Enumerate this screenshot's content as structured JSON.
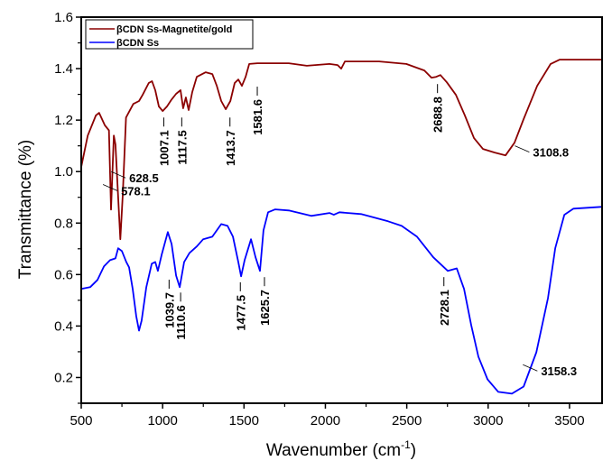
{
  "chart_data": {
    "type": "line",
    "title": "",
    "xlabel": "Wavenumber (cm",
    "xlabel_sup": "-1",
    "xlabel_end": ")",
    "ylabel": "Transmittance (%)",
    "xlim": [
      500,
      3700
    ],
    "ylim": [
      0.1,
      1.6
    ],
    "x_ticks": [
      500,
      1000,
      1500,
      2000,
      2500,
      3000,
      3500
    ],
    "x_tick_labels": [
      "500",
      "1000",
      "1500",
      "2000",
      "2500",
      "3000",
      "3500"
    ],
    "y_ticks": [
      0.2,
      0.4,
      0.6,
      0.8,
      1.0,
      1.2,
      1.4,
      1.6
    ],
    "y_tick_labels": [
      "0.2",
      "0.4",
      "0.6",
      "0.8",
      "1.0",
      "1.2",
      "1.4",
      "1.6"
    ],
    "grid": false,
    "legend_position": "top-left",
    "series": [
      {
        "name": "βCDN Ss-Magnetite/gold",
        "color": "#8b0000",
        "x": [
          500,
          540,
          590,
          610,
          645,
          670,
          683,
          700,
          710,
          740,
          755,
          775,
          820,
          855,
          877,
          915,
          935,
          955,
          977,
          1000,
          1027,
          1055,
          1083,
          1110,
          1126,
          1143,
          1160,
          1182,
          1210,
          1265,
          1305,
          1333,
          1360,
          1388,
          1416,
          1443,
          1465,
          1487,
          1510,
          1532,
          1582,
          1775,
          1886,
          2025,
          2075,
          2097,
          2120,
          2330,
          2497,
          2608,
          2652,
          2680,
          2707,
          2746,
          2802,
          2857,
          2913,
          2968,
          3040,
          3107,
          3162,
          3218,
          3301,
          3384,
          3440,
          3695
        ],
        "y": [
          1.018,
          1.14,
          1.218,
          1.228,
          1.18,
          1.16,
          0.852,
          1.14,
          1.105,
          0.737,
          0.91,
          1.21,
          1.263,
          1.274,
          1.298,
          1.344,
          1.351,
          1.316,
          1.253,
          1.235,
          1.253,
          1.28,
          1.302,
          1.316,
          1.246,
          1.288,
          1.239,
          1.309,
          1.368,
          1.386,
          1.379,
          1.333,
          1.274,
          1.242,
          1.274,
          1.344,
          1.358,
          1.333,
          1.368,
          1.418,
          1.421,
          1.421,
          1.411,
          1.418,
          1.414,
          1.4,
          1.428,
          1.428,
          1.418,
          1.393,
          1.365,
          1.368,
          1.375,
          1.347,
          1.298,
          1.218,
          1.13,
          1.088,
          1.074,
          1.063,
          1.112,
          1.204,
          1.333,
          1.418,
          1.435,
          1.435
        ]
      },
      {
        "name": "βCDN Ss",
        "color": "#0000ff",
        "x": [
          500,
          555,
          600,
          640,
          677,
          710,
          727,
          750,
          777,
          794,
          816,
          838,
          855,
          871,
          900,
          933,
          955,
          971,
          994,
          1032,
          1055,
          1083,
          1105,
          1132,
          1165,
          1210,
          1249,
          1305,
          1360,
          1399,
          1432,
          1465,
          1482,
          1504,
          1543,
          1571,
          1598,
          1620,
          1648,
          1692,
          1775,
          1913,
          2025,
          2052,
          2086,
          2219,
          2385,
          2469,
          2563,
          2663,
          2752,
          2768,
          2807,
          2852,
          2896,
          2940,
          2996,
          3062,
          3146,
          3218,
          3296,
          3368,
          3412,
          3468,
          3524,
          3695
        ],
        "y": [
          0.544,
          0.551,
          0.579,
          0.632,
          0.656,
          0.663,
          0.702,
          0.691,
          0.649,
          0.628,
          0.544,
          0.439,
          0.382,
          0.421,
          0.551,
          0.642,
          0.649,
          0.614,
          0.677,
          0.765,
          0.719,
          0.596,
          0.551,
          0.649,
          0.684,
          0.709,
          0.737,
          0.747,
          0.796,
          0.789,
          0.747,
          0.649,
          0.593,
          0.656,
          0.737,
          0.667,
          0.614,
          0.772,
          0.842,
          0.853,
          0.849,
          0.828,
          0.839,
          0.832,
          0.842,
          0.835,
          0.807,
          0.789,
          0.747,
          0.667,
          0.614,
          0.617,
          0.624,
          0.544,
          0.404,
          0.281,
          0.193,
          0.144,
          0.137,
          0.165,
          0.298,
          0.509,
          0.702,
          0.832,
          0.856,
          0.863
        ]
      }
    ],
    "annotations": [
      {
        "text": "628.5",
        "series": 0,
        "x": 628.5,
        "y": 1.0,
        "orientation": "horizontal"
      },
      {
        "text": "578.1",
        "series": 0,
        "x": 578.1,
        "y": 0.95,
        "orientation": "horizontal"
      },
      {
        "text": "1007.1",
        "series": 0,
        "x": 1007.1,
        "y": 1.21,
        "orientation": "vertical"
      },
      {
        "text": "1117.5",
        "series": 0,
        "x": 1117.5,
        "y": 1.21,
        "orientation": "vertical"
      },
      {
        "text": "1413.7",
        "series": 0,
        "x": 1413.7,
        "y": 1.21,
        "orientation": "vertical"
      },
      {
        "text": "1581.6",
        "series": 0,
        "x": 1581.6,
        "y": 1.33,
        "orientation": "vertical"
      },
      {
        "text": "2688.8",
        "series": 0,
        "x": 2688.8,
        "y": 1.34,
        "orientation": "vertical"
      },
      {
        "text": "3108.8",
        "series": 0,
        "x": 3108.8,
        "y": 1.1,
        "orientation": "horizontal"
      },
      {
        "text": "1039.7",
        "series": 1,
        "x": 1039.7,
        "y": 0.58,
        "orientation": "vertical"
      },
      {
        "text": "1110.6",
        "series": 1,
        "x": 1110.6,
        "y": 0.53,
        "orientation": "vertical"
      },
      {
        "text": "1477.5",
        "series": 1,
        "x": 1477.5,
        "y": 0.57,
        "orientation": "vertical"
      },
      {
        "text": "1625.7",
        "series": 1,
        "x": 1625.7,
        "y": 0.59,
        "orientation": "vertical"
      },
      {
        "text": "2728.1",
        "series": 1,
        "x": 2728.1,
        "y": 0.59,
        "orientation": "vertical"
      },
      {
        "text": "3158.3",
        "series": 1,
        "x": 3158.3,
        "y": 0.25,
        "orientation": "horizontal"
      }
    ]
  }
}
